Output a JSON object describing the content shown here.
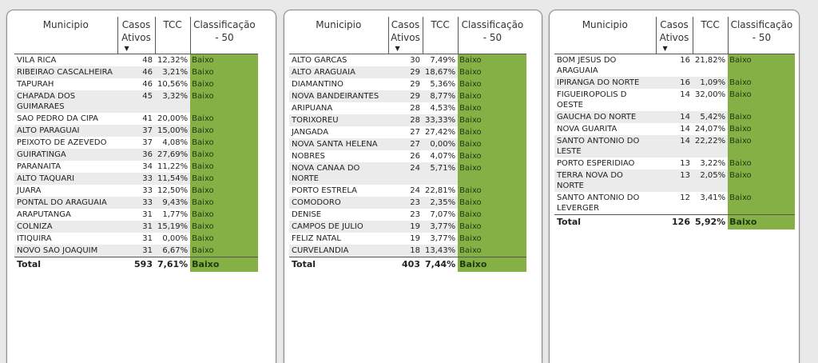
{
  "colors": {
    "classification_bg": "#84b046",
    "stripe_bg": "#ebebeb"
  },
  "headers": {
    "municipio": "Municipio",
    "casos_ativos": "Casos Ativos",
    "tcc": "TCC",
    "classificacao": "Classificação - 50",
    "sort_icon": "▼"
  },
  "tables": [
    {
      "rows": [
        {
          "municipio": "VILA RICA",
          "casos": "48",
          "tcc": "12,32%",
          "classificacao": "Baixo"
        },
        {
          "municipio": "RIBEIRAO CASCALHEIRA",
          "casos": "46",
          "tcc": "3,21%",
          "classificacao": "Baixo"
        },
        {
          "municipio": "TAPURAH",
          "casos": "46",
          "tcc": "10,56%",
          "classificacao": "Baixo"
        },
        {
          "municipio": "CHAPADA DOS GUIMARAES",
          "casos": "45",
          "tcc": "3,32%",
          "classificacao": "Baixo"
        },
        {
          "municipio": "SAO PEDRO DA CIPA",
          "casos": "41",
          "tcc": "20,00%",
          "classificacao": "Baixo"
        },
        {
          "municipio": "ALTO PARAGUAI",
          "casos": "37",
          "tcc": "15,00%",
          "classificacao": "Baixo"
        },
        {
          "municipio": "PEIXOTO DE AZEVEDO",
          "casos": "37",
          "tcc": "4,08%",
          "classificacao": "Baixo"
        },
        {
          "municipio": "GUIRATINGA",
          "casos": "36",
          "tcc": "27,69%",
          "classificacao": "Baixo"
        },
        {
          "municipio": "PARANAITA",
          "casos": "34",
          "tcc": "11,22%",
          "classificacao": "Baixo"
        },
        {
          "municipio": "ALTO TAQUARI",
          "casos": "33",
          "tcc": "11,54%",
          "classificacao": "Baixo"
        },
        {
          "municipio": "JUARA",
          "casos": "33",
          "tcc": "12,50%",
          "classificacao": "Baixo"
        },
        {
          "municipio": "PONTAL DO ARAGUAIA",
          "casos": "33",
          "tcc": "9,43%",
          "classificacao": "Baixo"
        },
        {
          "municipio": "ARAPUTANGA",
          "casos": "31",
          "tcc": "1,77%",
          "classificacao": "Baixo"
        },
        {
          "municipio": "COLNIZA",
          "casos": "31",
          "tcc": "15,19%",
          "classificacao": "Baixo"
        },
        {
          "municipio": "ITIQUIRA",
          "casos": "31",
          "tcc": "0,00%",
          "classificacao": "Baixo"
        },
        {
          "municipio": "NOVO SAO JOAQUIM",
          "casos": "31",
          "tcc": "6,67%",
          "classificacao": "Baixo"
        }
      ],
      "total": {
        "label": "Total",
        "casos": "593",
        "tcc": "7,61%",
        "classificacao": "Baixo"
      }
    },
    {
      "rows": [
        {
          "municipio": "ALTO GARCAS",
          "casos": "30",
          "tcc": "7,49%",
          "classificacao": "Baixo"
        },
        {
          "municipio": "ALTO ARAGUAIA",
          "casos": "29",
          "tcc": "18,67%",
          "classificacao": "Baixo"
        },
        {
          "municipio": "DIAMANTINO",
          "casos": "29",
          "tcc": "5,36%",
          "classificacao": "Baixo"
        },
        {
          "municipio": "NOVA BANDEIRANTES",
          "casos": "29",
          "tcc": "8,77%",
          "classificacao": "Baixo"
        },
        {
          "municipio": "ARIPUANA",
          "casos": "28",
          "tcc": "4,53%",
          "classificacao": "Baixo"
        },
        {
          "municipio": "TORIXOREU",
          "casos": "28",
          "tcc": "33,33%",
          "classificacao": "Baixo"
        },
        {
          "municipio": "JANGADA",
          "casos": "27",
          "tcc": "27,42%",
          "classificacao": "Baixo"
        },
        {
          "municipio": "NOVA SANTA HELENA",
          "casos": "27",
          "tcc": "0,00%",
          "classificacao": "Baixo"
        },
        {
          "municipio": "NOBRES",
          "casos": "26",
          "tcc": "4,07%",
          "classificacao": "Baixo"
        },
        {
          "municipio": "NOVA CANAA DO NORTE",
          "casos": "24",
          "tcc": "5,71%",
          "classificacao": "Baixo"
        },
        {
          "municipio": "PORTO ESTRELA",
          "casos": "24",
          "tcc": "22,81%",
          "classificacao": "Baixo"
        },
        {
          "municipio": "COMODORO",
          "casos": "23",
          "tcc": "2,35%",
          "classificacao": "Baixo"
        },
        {
          "municipio": "DENISE",
          "casos": "23",
          "tcc": "7,07%",
          "classificacao": "Baixo"
        },
        {
          "municipio": "CAMPOS DE JULIO",
          "casos": "19",
          "tcc": "3,77%",
          "classificacao": "Baixo"
        },
        {
          "municipio": "FELIZ NATAL",
          "casos": "19",
          "tcc": "3,77%",
          "classificacao": "Baixo"
        },
        {
          "municipio": "CURVELANDIA",
          "casos": "18",
          "tcc": "13,43%",
          "classificacao": "Baixo"
        }
      ],
      "total": {
        "label": "Total",
        "casos": "403",
        "tcc": "7,44%",
        "classificacao": "Baixo"
      }
    },
    {
      "rows": [
        {
          "municipio": "BOM JESUS DO ARAGUAIA",
          "casos": "16",
          "tcc": "21,82%",
          "classificacao": "Baixo"
        },
        {
          "municipio": "IPIRANGA DO NORTE",
          "casos": "16",
          "tcc": "1,09%",
          "classificacao": "Baixo"
        },
        {
          "municipio": "FIGUEIROPOLIS D OESTE",
          "casos": "14",
          "tcc": "32,00%",
          "classificacao": "Baixo"
        },
        {
          "municipio": "GAUCHA DO NORTE",
          "casos": "14",
          "tcc": "5,42%",
          "classificacao": "Baixo"
        },
        {
          "municipio": "NOVA GUARITA",
          "casos": "14",
          "tcc": "24,07%",
          "classificacao": "Baixo"
        },
        {
          "municipio": "SANTO ANTONIO DO LESTE",
          "casos": "14",
          "tcc": "22,22%",
          "classificacao": "Baixo"
        },
        {
          "municipio": "PORTO ESPERIDIAO",
          "casos": "13",
          "tcc": "3,22%",
          "classificacao": "Baixo"
        },
        {
          "municipio": "TERRA NOVA DO NORTE",
          "casos": "13",
          "tcc": "2,05%",
          "classificacao": "Baixo"
        },
        {
          "municipio": "SANTO ANTONIO DO LEVERGER",
          "casos": "12",
          "tcc": "3,41%",
          "classificacao": "Baixo"
        }
      ],
      "total": {
        "label": "Total",
        "casos": "126",
        "tcc": "5,92%",
        "classificacao": "Baixo"
      }
    }
  ]
}
